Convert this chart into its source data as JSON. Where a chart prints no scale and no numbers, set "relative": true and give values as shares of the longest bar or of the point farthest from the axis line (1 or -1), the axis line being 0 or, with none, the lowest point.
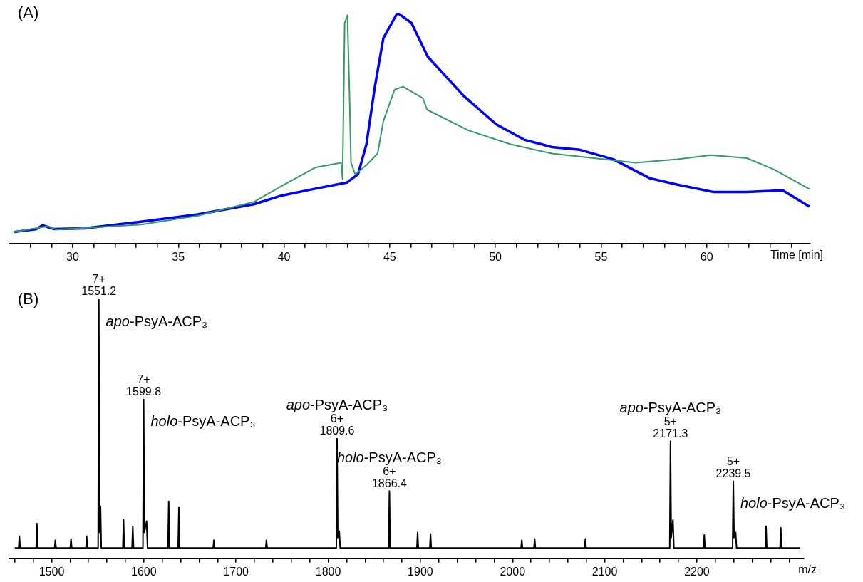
{
  "chart_data": [
    {
      "type": "line",
      "title": "(A)",
      "xlabel": "Time [min]",
      "relative": true,
      "xlim": [
        27,
        64.9
      ],
      "xticks": [
        {
          "value": 28,
          "label": null
        },
        {
          "value": 29,
          "label": null
        },
        30,
        {
          "value": 31,
          "label": null
        },
        {
          "value": 32,
          "label": null
        },
        {
          "value": 33,
          "label": null
        },
        {
          "value": 34,
          "label": null
        },
        35,
        {
          "value": 36,
          "label": null
        },
        {
          "value": 37,
          "label": null
        },
        {
          "value": 38,
          "label": null
        },
        {
          "value": 39,
          "label": null
        },
        40,
        {
          "value": 41,
          "label": null
        },
        {
          "value": 42,
          "label": null
        },
        {
          "value": 43,
          "label": null
        },
        {
          "value": 44,
          "label": null
        },
        45,
        {
          "value": 46,
          "label": null
        },
        {
          "value": 47,
          "label": null
        },
        {
          "value": 48,
          "label": null
        },
        {
          "value": 49,
          "label": null
        },
        50,
        {
          "value": 51,
          "label": null
        },
        {
          "value": 52,
          "label": null
        },
        {
          "value": 53,
          "label": null
        },
        {
          "value": 54,
          "label": null
        },
        55,
        {
          "value": 56,
          "label": null
        },
        {
          "value": 57,
          "label": null
        },
        {
          "value": 58,
          "label": null
        },
        {
          "value": 59,
          "label": null
        },
        60,
        {
          "value": 61,
          "label": null
        },
        {
          "value": 62,
          "label": null
        },
        {
          "value": 63,
          "label": null
        },
        {
          "value": 64,
          "label": null
        }
      ],
      "series": [
        {
          "color": "#359a66",
          "x": [
            27.23,
            28.83,
            29.23,
            33.23,
            35.9,
            38.57,
            39.9,
            41.5,
            42.7,
            42.77,
            42.87,
            43.0,
            43.1,
            43.17,
            43.37,
            43.9,
            44.43,
            44.7,
            45.23,
            45.63,
            46.57,
            46.77,
            48.73,
            50.72,
            52.68,
            54.67,
            56.63,
            58.62,
            60.2,
            61.9,
            63.2,
            64.86
          ],
          "values": [
            0.05,
            0.075,
            0.06,
            0.082,
            0.12,
            0.18,
            0.25,
            0.33,
            0.35,
            0.28,
            0.956,
            0.99,
            0.64,
            0.35,
            0.3,
            0.34,
            0.39,
            0.53,
            0.667,
            0.68,
            0.63,
            0.58,
            0.49,
            0.43,
            0.39,
            0.37,
            0.35,
            0.365,
            0.383,
            0.37,
            0.32,
            0.236
          ]
        },
        {
          "color": "#0000ff",
          "x": [
            27.23,
            28.3,
            28.57,
            29.1,
            30.57,
            33.23,
            35.9,
            38.57,
            39.9,
            41.23,
            42.97,
            43.5,
            43.9,
            44.3,
            44.7,
            45.37,
            46.03,
            46.8,
            48.5,
            50.05,
            51.36,
            52.68,
            54.0,
            55.58,
            57.3,
            58.62,
            60.34,
            61.9,
            63.6,
            64.86
          ],
          "values": [
            0.05,
            0.063,
            0.079,
            0.063,
            0.066,
            0.094,
            0.126,
            0.17,
            0.208,
            0.233,
            0.264,
            0.3,
            0.43,
            0.68,
            0.89,
            1.0,
            0.956,
            0.81,
            0.64,
            0.516,
            0.45,
            0.418,
            0.406,
            0.365,
            0.283,
            0.255,
            0.223,
            0.223,
            0.23,
            0.16
          ]
        }
      ]
    },
    {
      "type": "line",
      "title": "(B)",
      "xlabel": "m/z",
      "relative": true,
      "xlim": [
        1454,
        2316
      ],
      "xticks": [
        {
          "value": 1460,
          "label": null
        },
        {
          "value": 1480,
          "label": null
        },
        1500,
        {
          "value": 1520,
          "label": null
        },
        {
          "value": 1540,
          "label": null
        },
        {
          "value": 1560,
          "label": null
        },
        {
          "value": 1580,
          "label": null
        },
        1600,
        {
          "value": 1620,
          "label": null
        },
        {
          "value": 1640,
          "label": null
        },
        {
          "value": 1660,
          "label": null
        },
        {
          "value": 1680,
          "label": null
        },
        1700,
        {
          "value": 1720,
          "label": null
        },
        {
          "value": 1740,
          "label": null
        },
        {
          "value": 1760,
          "label": null
        },
        {
          "value": 1780,
          "label": null
        },
        1800,
        {
          "value": 1820,
          "label": null
        },
        {
          "value": 1840,
          "label": null
        },
        {
          "value": 1860,
          "label": null
        },
        {
          "value": 1880,
          "label": null
        },
        1900,
        {
          "value": 1920,
          "label": null
        },
        {
          "value": 1940,
          "label": null
        },
        {
          "value": 1960,
          "label": null
        },
        {
          "value": 1980,
          "label": null
        },
        2000,
        {
          "value": 2020,
          "label": null
        },
        {
          "value": 2040,
          "label": null
        },
        {
          "value": 2060,
          "label": null
        },
        {
          "value": 2080,
          "label": null
        },
        2100,
        {
          "value": 2120,
          "label": null
        },
        {
          "value": 2140,
          "label": null
        },
        {
          "value": 2160,
          "label": null
        },
        {
          "value": 2180,
          "label": null
        },
        2200,
        {
          "value": 2220,
          "label": null
        },
        {
          "value": 2240,
          "label": null
        },
        {
          "value": 2260,
          "label": null
        },
        {
          "value": 2280,
          "label": null
        },
        {
          "value": 2300,
          "label": null
        }
      ],
      "series": [
        {
          "color": "#000000",
          "x": [
            1460,
            1464.2,
            1465,
            1465.8,
            1483.2,
            1484,
            1484.8,
            1503.2,
            1504,
            1504.8,
            1520.2,
            1521,
            1521.8,
            1537.2,
            1538,
            1538.8,
            1550.4,
            1551.2,
            1552,
            1553,
            1553.8,
            1577.2,
            1578,
            1578.8,
            1587.2,
            1588,
            1588.8,
            1599,
            1599.8,
            1600.6,
            1603,
            1604,
            1626.2,
            1627,
            1627.8,
            1637.2,
            1638,
            1638.8,
            1675.2,
            1676,
            1676.8,
            1732.2,
            1733,
            1733.8,
            1808.8,
            1809.6,
            1810.4,
            1812,
            1813,
            1865.6,
            1866.4,
            1867.2,
            1896.2,
            1897,
            1897.8,
            1910.2,
            1911,
            1911.8,
            2009.2,
            2010,
            2010.8,
            2023.2,
            2024,
            2024.8,
            2078.2,
            2079,
            2079.8,
            2170.5,
            2171.3,
            2172.1,
            2174,
            2175,
            2207.2,
            2208,
            2208.8,
            2238.7,
            2239.5,
            2240.3,
            2242,
            2243,
            2274.2,
            2275,
            2275.8,
            2290.2,
            2291,
            2291.8,
            2312
          ],
          "values": [
            0.04,
            0.04,
            0.086,
            0.04,
            0.04,
            0.134,
            0.04,
            0.04,
            0.07,
            0.04,
            0.04,
            0.075,
            0.04,
            0.04,
            0.086,
            0.04,
            0.04,
            1.0,
            0.1,
            0.2,
            0.04,
            0.04,
            0.15,
            0.04,
            0.04,
            0.124,
            0.04,
            0.04,
            0.613,
            0.1,
            0.144,
            0.04,
            0.04,
            0.22,
            0.04,
            0.04,
            0.196,
            0.04,
            0.04,
            0.07,
            0.04,
            0.04,
            0.07,
            0.04,
            0.04,
            0.462,
            0.08,
            0.105,
            0.04,
            0.04,
            0.26,
            0.04,
            0.04,
            0.1,
            0.04,
            0.04,
            0.094,
            0.04,
            0.04,
            0.07,
            0.04,
            0.04,
            0.075,
            0.04,
            0.04,
            0.075,
            0.04,
            0.04,
            0.452,
            0.08,
            0.148,
            0.04,
            0.04,
            0.09,
            0.04,
            0.04,
            0.298,
            0.08,
            0.1,
            0.04,
            0.04,
            0.124,
            0.04,
            0.04,
            0.118,
            0.04,
            0.04
          ]
        }
      ],
      "annotations": [
        {
          "text": "7+\n1551.2",
          "x": 1551.2,
          "y": 1.0
        },
        {
          "text": "apo-PsyA-ACP₃",
          "x": 1551.2,
          "y": 1.0
        },
        {
          "text": "7+\n1599.8",
          "x": 1599.8,
          "y": 0.613
        },
        {
          "text": "holo-PsyA-ACP₃",
          "x": 1599.8,
          "y": 0.613
        },
        {
          "text": "apo-PsyA-ACP₃\n6+\n1809.6",
          "x": 1809.6,
          "y": 0.462
        },
        {
          "text": "holo-PsyA-ACP₃\n6+\n1866.4",
          "x": 1866.4,
          "y": 0.26
        },
        {
          "text": "apo-PsyA-ACP₃\n5+\n2171.3",
          "x": 2171.3,
          "y": 0.452
        },
        {
          "text": "5+\n2239.5",
          "x": 2239.5,
          "y": 0.298
        },
        {
          "text": "holo-PsyA-ACP₃",
          "x": 2239.5,
          "y": 0.298
        }
      ]
    }
  ]
}
